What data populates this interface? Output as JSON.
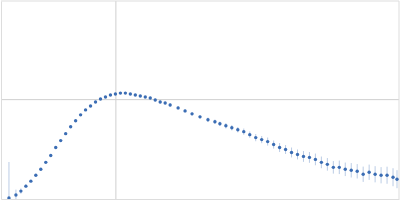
{
  "chart_data": {
    "type": "scatter",
    "x": [
      0.12,
      0.225,
      0.3,
      0.375,
      0.45,
      0.525,
      0.6,
      0.675,
      0.75,
      0.825,
      0.9,
      0.975,
      1.05,
      1.125,
      1.2,
      1.275,
      1.35,
      1.425,
      1.5,
      1.575,
      1.65,
      1.725,
      1.8,
      1.875,
      1.95,
      2.025,
      2.1,
      2.175,
      2.25,
      2.325,
      2.4,
      2.475,
      2.55,
      2.67,
      2.775,
      2.88,
      3.0,
      3.12,
      3.225,
      3.3,
      3.39,
      3.48,
      3.57,
      3.66,
      3.75,
      3.84,
      3.93,
      4.02,
      4.11,
      4.2,
      4.29,
      4.38,
      4.47,
      4.56,
      4.65,
      4.74,
      4.83,
      4.92,
      5.01,
      5.1,
      5.19,
      5.28,
      5.37,
      5.46,
      5.55,
      5.64,
      5.73,
      5.82,
      5.91,
      5.97
    ],
    "values": [
      0.011,
      0.044,
      0.088,
      0.143,
      0.198,
      0.264,
      0.33,
      0.407,
      0.484,
      0.572,
      0.649,
      0.726,
      0.803,
      0.869,
      0.935,
      0.99,
      1.034,
      1.078,
      1.111,
      1.133,
      1.155,
      1.166,
      1.177,
      1.177,
      1.166,
      1.155,
      1.144,
      1.133,
      1.122,
      1.1,
      1.078,
      1.067,
      1.045,
      1.012,
      0.979,
      0.946,
      0.913,
      0.88,
      0.858,
      0.836,
      0.814,
      0.792,
      0.77,
      0.748,
      0.715,
      0.682,
      0.66,
      0.638,
      0.605,
      0.572,
      0.55,
      0.517,
      0.495,
      0.473,
      0.462,
      0.44,
      0.407,
      0.385,
      0.352,
      0.352,
      0.33,
      0.319,
      0.308,
      0.275,
      0.297,
      0.275,
      0.264,
      0.264,
      0.242,
      0.22
    ],
    "errors": [
      0.4,
      0.06,
      0.03,
      0.02,
      0.01,
      0.01,
      0.01,
      0.01,
      0.01,
      0.01,
      0.01,
      0.01,
      0.01,
      0.01,
      0.01,
      0.01,
      0.01,
      0.01,
      0.01,
      0.01,
      0.01,
      0.01,
      0.01,
      0.01,
      0.01,
      0.01,
      0.01,
      0.01,
      0.015,
      0.015,
      0.015,
      0.015,
      0.02,
      0.02,
      0.02,
      0.02,
      0.02,
      0.025,
      0.025,
      0.025,
      0.03,
      0.03,
      0.03,
      0.035,
      0.035,
      0.04,
      0.04,
      0.045,
      0.045,
      0.05,
      0.05,
      0.055,
      0.055,
      0.06,
      0.06,
      0.065,
      0.065,
      0.07,
      0.07,
      0.075,
      0.075,
      0.08,
      0.08,
      0.085,
      0.085,
      0.09,
      0.09,
      0.095,
      0.1,
      0.1
    ],
    "xlim": [
      0,
      6
    ],
    "ylim": [
      0,
      2.2
    ],
    "xticks": [
      1.732
    ],
    "yticks": [
      1.104
    ],
    "grid": true,
    "tick_labels": false,
    "color": "#3b6db4",
    "marker": "circle"
  }
}
